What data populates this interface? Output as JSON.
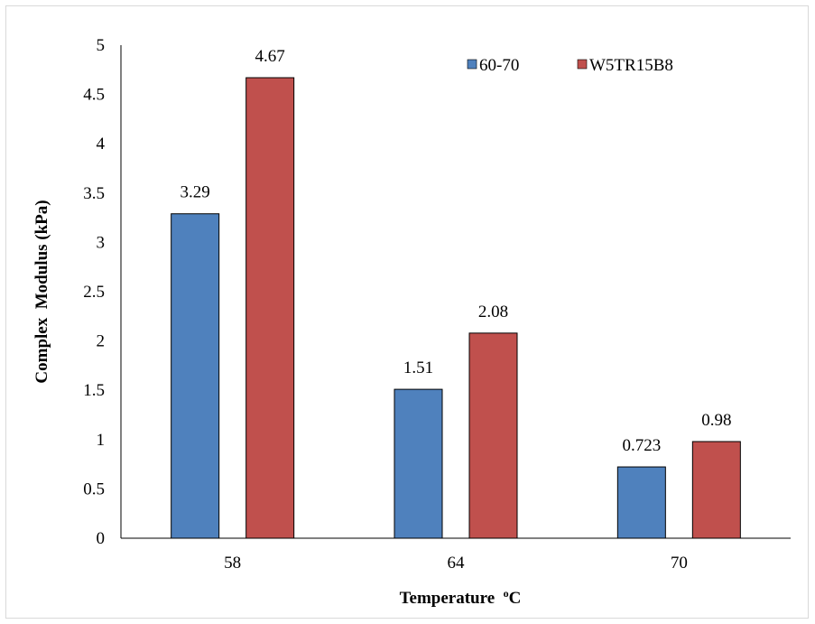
{
  "chart_data": {
    "type": "bar",
    "categories": [
      "58",
      "64",
      "70"
    ],
    "series": [
      {
        "name": "60-70",
        "values": [
          3.29,
          1.51,
          0.723
        ],
        "labels": [
          "3.29",
          "1.51",
          "0.723"
        ],
        "color": "#4f81bd"
      },
      {
        "name": "W5TR15B8",
        "values": [
          4.67,
          2.08,
          0.98
        ],
        "labels": [
          "4.67",
          "2.08",
          "0.98"
        ],
        "color": "#c0504d"
      }
    ],
    "xlabel": "Temperature",
    "xlabel_unit_sup": "o",
    "xlabel_unit": "C",
    "ylabel": "Complex  Modulus (kPa)",
    "ylim": [
      0,
      5
    ],
    "yticks": [
      "0",
      "0.5",
      "1",
      "1.5",
      "2",
      "2.5",
      "3",
      "3.5",
      "4",
      "4.5",
      "5"
    ],
    "grid": false,
    "legend_position": "top-right"
  }
}
